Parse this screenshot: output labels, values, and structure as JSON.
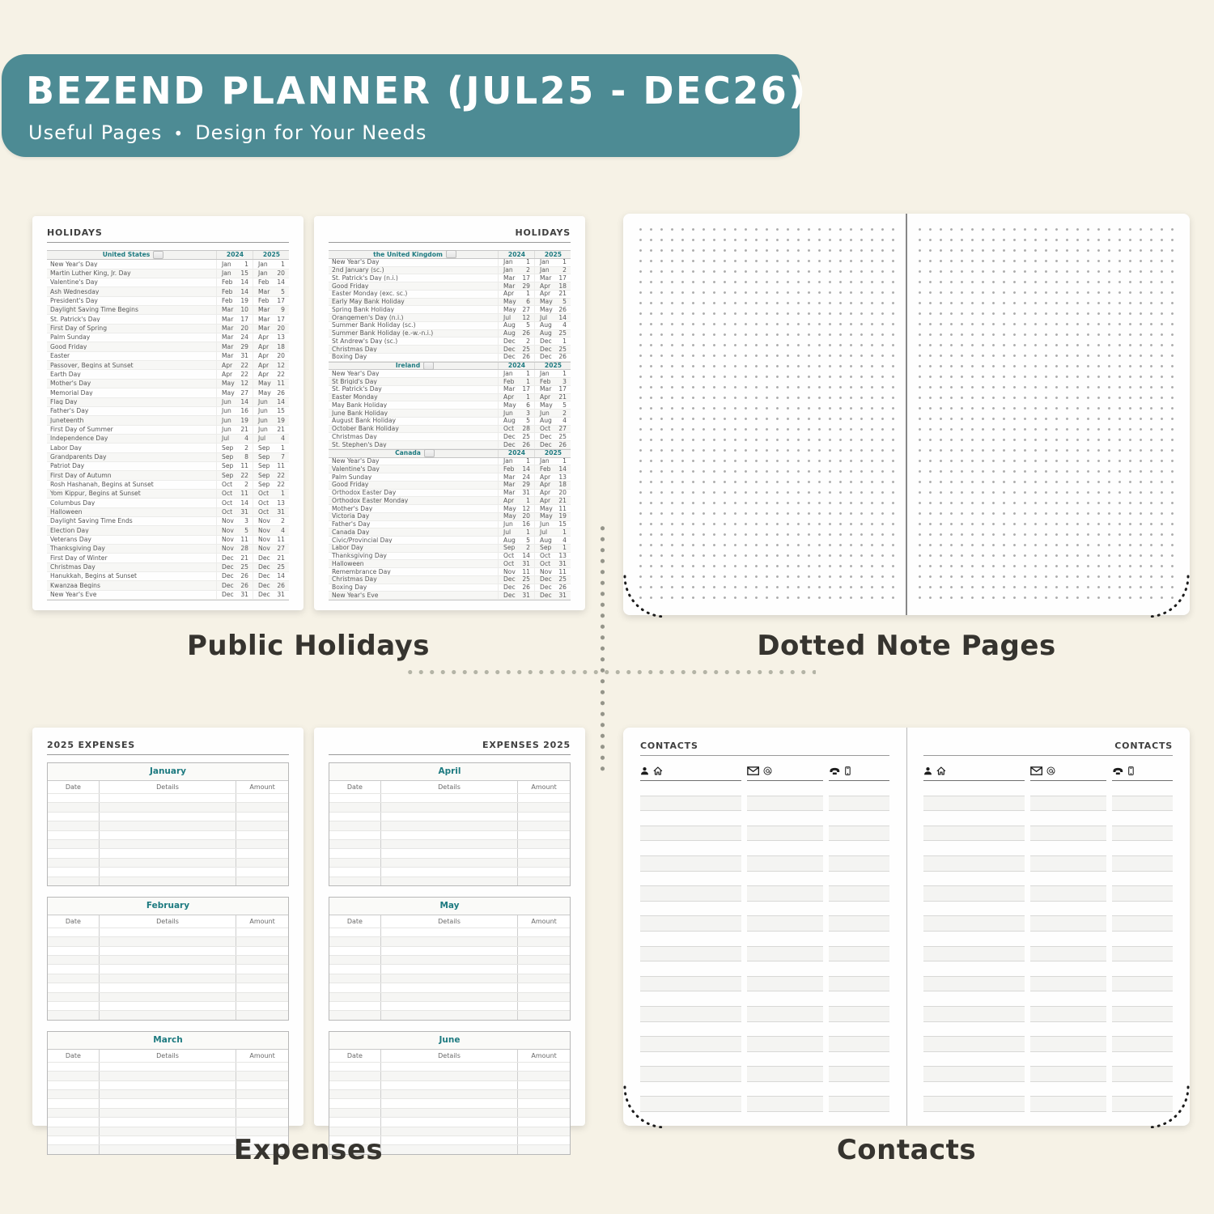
{
  "colors": {
    "banner_bg": "#4d8b94",
    "teal_text": "#1d7a80",
    "page_bg": "#fefefe",
    "canvas_bg": "#f6f2e6",
    "caption_text": "#36342f"
  },
  "banner": {
    "title": "BEZEND PLANNER (JUL25 - DEC26)",
    "subtitle_left": "Useful Pages",
    "subtitle_sep": "•",
    "subtitle_right": "Design for Your Needs"
  },
  "captions": {
    "holidays": "Public Holidays",
    "dotted": "Dotted Note Pages",
    "expenses": "Expenses",
    "contacts": "Contacts"
  },
  "holidays": {
    "page_title": "HOLIDAYS",
    "year_cols": [
      "2024",
      "2025"
    ],
    "left_sections": [
      {
        "region": "United States",
        "flag": "us-flag-icon",
        "rows": [
          [
            "New Year's Day",
            "Jan",
            "1",
            "Jan",
            "1"
          ],
          [
            "Martin Luther King, Jr. Day",
            "Jan",
            "15",
            "Jan",
            "20"
          ],
          [
            "Valentine's Day",
            "Feb",
            "14",
            "Feb",
            "14"
          ],
          [
            "Ash Wednesday",
            "Feb",
            "14",
            "Mar",
            "5"
          ],
          [
            "President's Day",
            "Feb",
            "19",
            "Feb",
            "17"
          ],
          [
            "Daylight Saving Time Begins",
            "Mar",
            "10",
            "Mar",
            "9"
          ],
          [
            "St. Patrick's Day",
            "Mar",
            "17",
            "Mar",
            "17"
          ],
          [
            "First Day of Spring",
            "Mar",
            "20",
            "Mar",
            "20"
          ],
          [
            "Palm Sunday",
            "Mar",
            "24",
            "Apr",
            "13"
          ],
          [
            "Good Friday",
            "Mar",
            "29",
            "Apr",
            "18"
          ],
          [
            "Easter",
            "Mar",
            "31",
            "Apr",
            "20"
          ],
          [
            "Passover, Begins at Sunset",
            "Apr",
            "22",
            "Apr",
            "12"
          ],
          [
            "Earth Day",
            "Apr",
            "22",
            "Apr",
            "22"
          ],
          [
            "Mother's Day",
            "May",
            "12",
            "May",
            "11"
          ],
          [
            "Memorial Day",
            "May",
            "27",
            "May",
            "26"
          ],
          [
            "Flag Day",
            "Jun",
            "14",
            "Jun",
            "14"
          ],
          [
            "Father's Day",
            "Jun",
            "16",
            "Jun",
            "15"
          ],
          [
            "Juneteenth",
            "Jun",
            "19",
            "Jun",
            "19"
          ],
          [
            "First Day of Summer",
            "Jun",
            "21",
            "Jun",
            "21"
          ],
          [
            "Independence Day",
            "Jul",
            "4",
            "Jul",
            "4"
          ],
          [
            "Labor Day",
            "Sep",
            "2",
            "Sep",
            "1"
          ],
          [
            "Grandparents Day",
            "Sep",
            "8",
            "Sep",
            "7"
          ],
          [
            "Patriot Day",
            "Sep",
            "11",
            "Sep",
            "11"
          ],
          [
            "First Day of Autumn",
            "Sep",
            "22",
            "Sep",
            "22"
          ],
          [
            "Rosh Hashanah, Begins at Sunset",
            "Oct",
            "2",
            "Sep",
            "22"
          ],
          [
            "Yom Kippur, Begins at Sunset",
            "Oct",
            "11",
            "Oct",
            "1"
          ],
          [
            "Columbus Day",
            "Oct",
            "14",
            "Oct",
            "13"
          ],
          [
            "Halloween",
            "Oct",
            "31",
            "Oct",
            "31"
          ],
          [
            "Daylight Saving Time Ends",
            "Nov",
            "3",
            "Nov",
            "2"
          ],
          [
            "Election Day",
            "Nov",
            "5",
            "Nov",
            "4"
          ],
          [
            "Veterans Day",
            "Nov",
            "11",
            "Nov",
            "11"
          ],
          [
            "Thanksgiving Day",
            "Nov",
            "28",
            "Nov",
            "27"
          ],
          [
            "First Day of Winter",
            "Dec",
            "21",
            "Dec",
            "21"
          ],
          [
            "Christmas Day",
            "Dec",
            "25",
            "Dec",
            "25"
          ],
          [
            "Hanukkah, Begins at Sunset",
            "Dec",
            "26",
            "Dec",
            "14"
          ],
          [
            "Kwanzaa Begins",
            "Dec",
            "26",
            "Dec",
            "26"
          ],
          [
            "New Year's Eve",
            "Dec",
            "31",
            "Dec",
            "31"
          ]
        ]
      }
    ],
    "right_sections": [
      {
        "region": "the United Kingdom",
        "flag": "uk-flag-icon",
        "rows": [
          [
            "New Year's Day",
            "Jan",
            "1",
            "Jan",
            "1"
          ],
          [
            "2nd January (sc.)",
            "Jan",
            "2",
            "Jan",
            "2"
          ],
          [
            "St. Patrick's Day (n.i.)",
            "Mar",
            "17",
            "Mar",
            "17"
          ],
          [
            "Good Friday",
            "Mar",
            "29",
            "Apr",
            "18"
          ],
          [
            "Easter Monday (exc. sc.)",
            "Apr",
            "1",
            "Apr",
            "21"
          ],
          [
            "Early May Bank Holiday",
            "May",
            "6",
            "May",
            "5"
          ],
          [
            "Spring Bank Holiday",
            "May",
            "27",
            "May",
            "26"
          ],
          [
            "Orangemen's Day (n.i.)",
            "Jul",
            "12",
            "Jul",
            "14"
          ],
          [
            "Summer Bank Holiday (sc.)",
            "Aug",
            "5",
            "Aug",
            "4"
          ],
          [
            "Summer Bank Holiday (e.-w.-n.i.)",
            "Aug",
            "26",
            "Aug",
            "25"
          ],
          [
            "St Andrew's Day (sc.)",
            "Dec",
            "2",
            "Dec",
            "1"
          ],
          [
            "Christmas Day",
            "Dec",
            "25",
            "Dec",
            "25"
          ],
          [
            "Boxing Day",
            "Dec",
            "26",
            "Dec",
            "26"
          ]
        ]
      },
      {
        "region": "Ireland",
        "flag": "ireland-flag-icon",
        "rows": [
          [
            "New Year's Day",
            "Jan",
            "1",
            "Jan",
            "1"
          ],
          [
            "St Brigid's Day",
            "Feb",
            "1",
            "Feb",
            "3"
          ],
          [
            "St. Patrick's Day",
            "Mar",
            "17",
            "Mar",
            "17"
          ],
          [
            "Easter Monday",
            "Apr",
            "1",
            "Apr",
            "21"
          ],
          [
            "May Bank Holiday",
            "May",
            "6",
            "May",
            "5"
          ],
          [
            "June Bank Holiday",
            "Jun",
            "3",
            "Jun",
            "2"
          ],
          [
            "August Bank Holiday",
            "Aug",
            "5",
            "Aug",
            "4"
          ],
          [
            "October Bank Holiday",
            "Oct",
            "28",
            "Oct",
            "27"
          ],
          [
            "Christmas Day",
            "Dec",
            "25",
            "Dec",
            "25"
          ],
          [
            "St. Stephen's Day",
            "Dec",
            "26",
            "Dec",
            "26"
          ]
        ]
      },
      {
        "region": "Canada",
        "flag": "canada-flag-icon",
        "rows": [
          [
            "New Year's Day",
            "Jan",
            "1",
            "Jan",
            "1"
          ],
          [
            "Valentine's Day",
            "Feb",
            "14",
            "Feb",
            "14"
          ],
          [
            "Palm Sunday",
            "Mar",
            "24",
            "Apr",
            "13"
          ],
          [
            "Good Friday",
            "Mar",
            "29",
            "Apr",
            "18"
          ],
          [
            "Orthodox Easter Day",
            "Mar",
            "31",
            "Apr",
            "20"
          ],
          [
            "Orthodox Easter Monday",
            "Apr",
            "1",
            "Apr",
            "21"
          ],
          [
            "Mother's Day",
            "May",
            "12",
            "May",
            "11"
          ],
          [
            "Victoria Day",
            "May",
            "20",
            "May",
            "19"
          ],
          [
            "Father's Day",
            "Jun",
            "16",
            "Jun",
            "15"
          ],
          [
            "Canada Day",
            "Jul",
            "1",
            "Jul",
            "1"
          ],
          [
            "Civic/Provincial Day",
            "Aug",
            "5",
            "Aug",
            "4"
          ],
          [
            "Labor Day",
            "Sep",
            "2",
            "Sep",
            "1"
          ],
          [
            "Thanksgiving Day",
            "Oct",
            "14",
            "Oct",
            "13"
          ],
          [
            "Halloween",
            "Oct",
            "31",
            "Oct",
            "31"
          ],
          [
            "Remembrance Day",
            "Nov",
            "11",
            "Nov",
            "11"
          ],
          [
            "Christmas Day",
            "Dec",
            "25",
            "Dec",
            "25"
          ],
          [
            "Boxing Day",
            "Dec",
            "26",
            "Dec",
            "26"
          ],
          [
            "New Year's Eve",
            "Dec",
            "31",
            "Dec",
            "31"
          ]
        ]
      }
    ]
  },
  "expenses": {
    "left_title": "2025 EXPENSES",
    "right_title": "EXPENSES 2025",
    "columns": [
      "Date",
      "Details",
      "Amount"
    ],
    "left_months": [
      "January",
      "February",
      "March"
    ],
    "right_months": [
      "April",
      "May",
      "June"
    ],
    "blank_rows": 10
  },
  "contacts": {
    "page_title": "CONTACTS",
    "columns": [
      {
        "icons": [
          "person-icon",
          "home-icon"
        ]
      },
      {
        "icons": [
          "envelope-icon",
          "at-icon"
        ]
      },
      {
        "icons": [
          "phone-icon",
          "mobile-icon"
        ]
      }
    ],
    "blank_rows": 22
  }
}
